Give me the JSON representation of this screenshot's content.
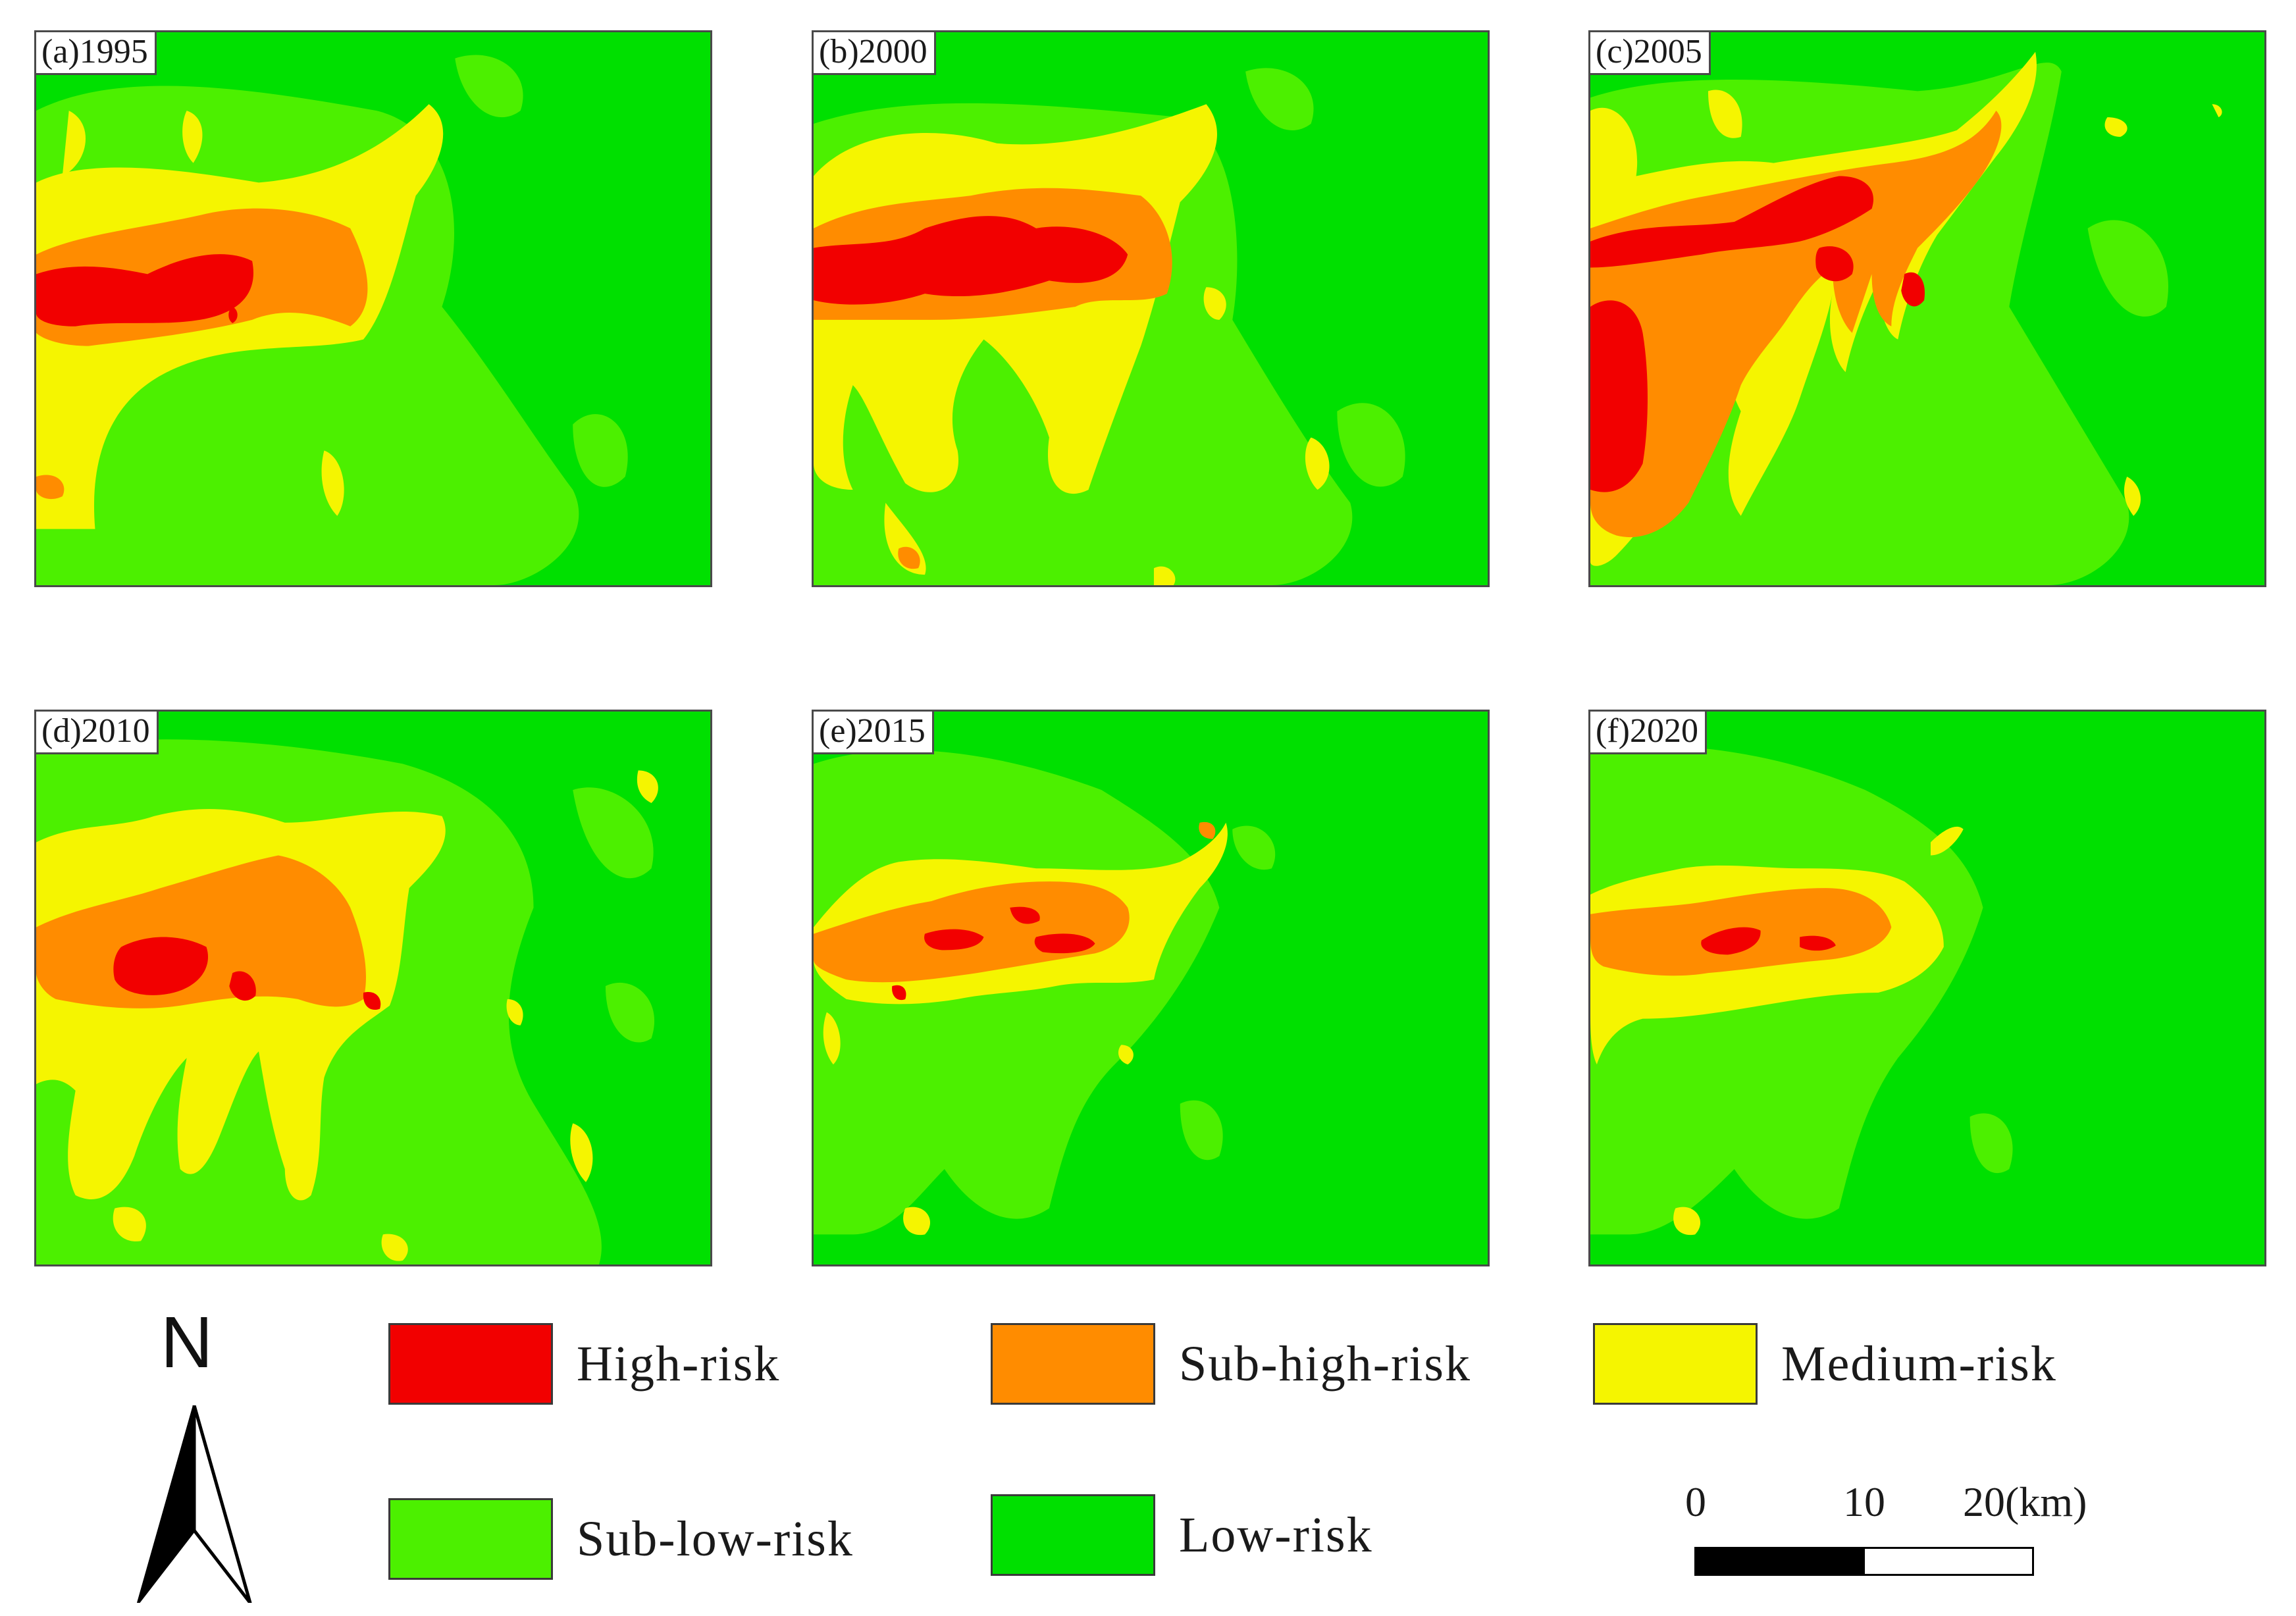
{
  "colors": {
    "high": "#f20000",
    "subhigh": "#ff8c00",
    "medium": "#f5f500",
    "sublow": "#4cf000",
    "low": "#00e000"
  },
  "panels": [
    {
      "label": "(a)1995",
      "year": 1995
    },
    {
      "label": "(b)2000",
      "year": 2000
    },
    {
      "label": "(c)2005",
      "year": 2005
    },
    {
      "label": "(d)2010",
      "year": 2010
    },
    {
      "label": "(e)2015",
      "year": 2015
    },
    {
      "label": "(f)2020",
      "year": 2020
    }
  ],
  "legend": {
    "items": [
      {
        "label": "High-risk",
        "color": "#f20000"
      },
      {
        "label": "Sub-high-risk",
        "color": "#ff8c00"
      },
      {
        "label": "Medium-risk",
        "color": "#f5f500"
      },
      {
        "label": "Sub-low-risk",
        "color": "#4cf000"
      },
      {
        "label": "Low-risk",
        "color": "#00e000"
      }
    ]
  },
  "north_arrow": {
    "letter": "N"
  },
  "scale_bar": {
    "ticks": [
      "0",
      "10",
      "20(km)"
    ]
  }
}
